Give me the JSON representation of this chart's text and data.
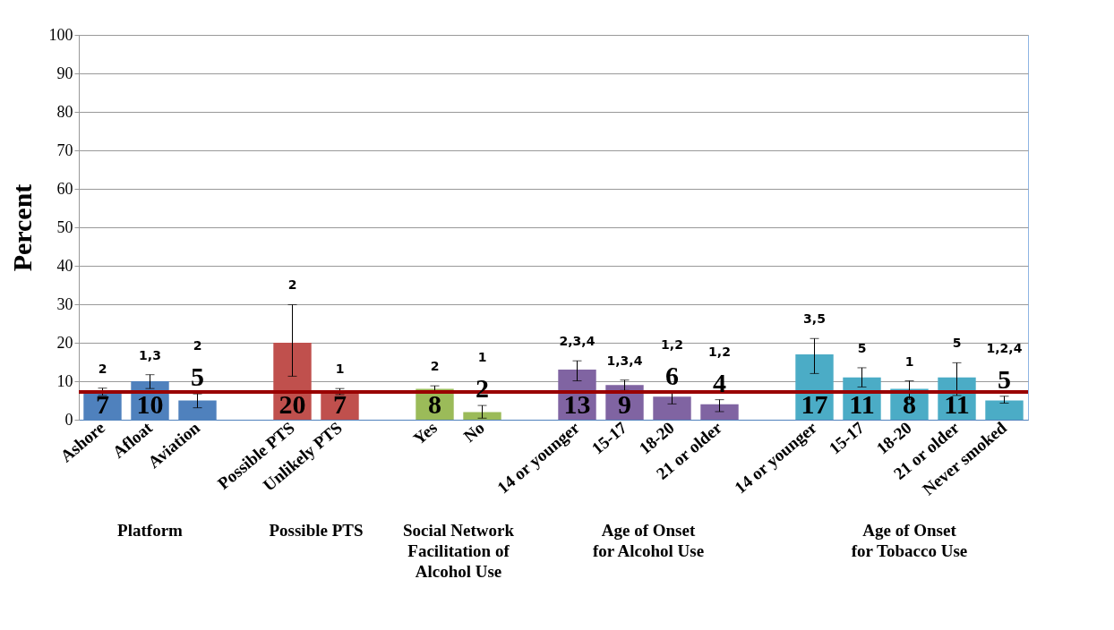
{
  "chart_data": {
    "type": "bar",
    "ylabel": "Percent",
    "categories": [
      "Ashore",
      "Afloat",
      "Aviation",
      null,
      "Possible PTS",
      "Unlikely PTS",
      null,
      "Yes",
      "No",
      null,
      "14 or younger",
      "15-17",
      "18-20",
      "21 or older",
      null,
      "14 or younger",
      "15-17",
      "18-20",
      "21 or older",
      "Never smoked"
    ],
    "values": [
      7,
      10,
      5,
      null,
      20,
      7,
      null,
      8,
      2,
      null,
      13,
      9,
      6,
      4,
      null,
      17,
      11,
      8,
      11,
      5
    ],
    "colors": [
      "#4f81bd",
      "#4f81bd",
      "#4f81bd",
      null,
      "#c0504d",
      "#c0504d",
      null,
      "#9bbb59",
      "#9bbb59",
      null,
      "#8064a2",
      "#8064a2",
      "#8064a2",
      "#8064a2",
      null,
      "#4bacc6",
      "#4bacc6",
      "#4bacc6",
      "#4bacc6",
      "#4bacc6"
    ],
    "errors": [
      [
        6.3,
        8.2
      ],
      [
        8.1,
        11.7
      ],
      [
        3.1,
        6.7
      ],
      null,
      [
        11.3,
        29.9
      ],
      [
        6.5,
        8.1
      ],
      null,
      [
        7.5,
        8.8
      ],
      [
        0.4,
        3.7
      ],
      null,
      [
        10.1,
        15.3
      ],
      [
        7.6,
        10.3
      ],
      [
        4.1,
        6.9
      ],
      [
        2.1,
        5.2
      ],
      null,
      [
        12,
        21.1
      ],
      [
        8.5,
        13.5
      ],
      [
        5.3,
        10.1
      ],
      [
        6.3,
        14.8
      ],
      [
        4.3,
        6.1
      ]
    ],
    "data_labels": true,
    "ylim": [
      0,
      100
    ],
    "yticks": [
      0,
      10,
      20,
      30,
      40,
      50,
      60,
      70,
      80,
      90,
      100
    ],
    "grid": "y",
    "ref_lines": [
      {
        "axis": "y",
        "value": 7.2,
        "color": "#990000"
      }
    ],
    "annotations": [
      "2",
      "1,3",
      "2",
      "2",
      "1",
      "2",
      "1",
      "2,3,4",
      "1,3,4",
      "1,2",
      "1,2",
      "3,5",
      "5",
      "1",
      "5",
      "1,2,4",
      "Platform",
      "Possible PTS",
      "Social Network\nFacilitation of\nAlcohol Use",
      "Age of Onset\nfor Alcohol Use",
      "Age of Onset\nfor Tobacco Use"
    ]
  }
}
